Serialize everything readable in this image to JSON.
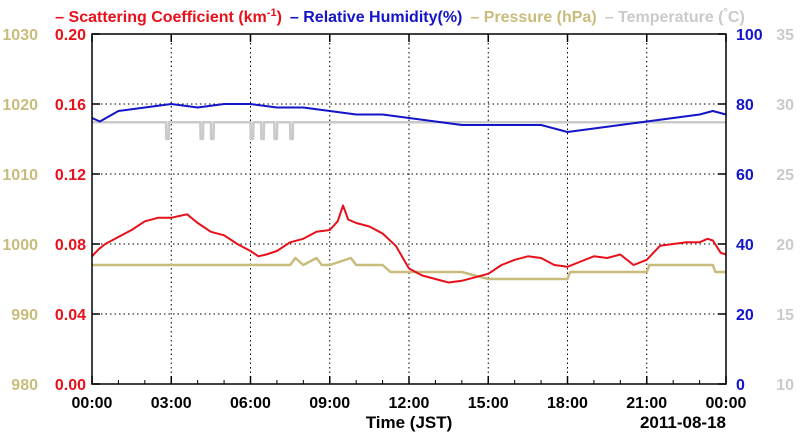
{
  "chart_data": {
    "type": "line",
    "legend": [
      {
        "text": "Scattering Coefficient (km",
        "sup": "-1",
        "tail": ")",
        "color": "#e8101a"
      },
      {
        "text": "Relative Humidity(%)",
        "color": "#1414c8"
      },
      {
        "text": "Pressure (hPa)",
        "color": "#c8bc7c"
      },
      {
        "text": "Temperature (",
        "sup": "°",
        "tail": "C)",
        "color": "#cacaca"
      }
    ],
    "xlabel": "Time (JST)",
    "date_label": "2011-08-18",
    "x_ticks": [
      "00:00",
      "03:00",
      "06:00",
      "09:00",
      "12:00",
      "15:00",
      "18:00",
      "21:00",
      "00:00"
    ],
    "xlim": [
      0,
      24
    ],
    "axes": {
      "pressure": {
        "color": "#c8bc7c",
        "ticks": [
          "980",
          "990",
          "1000",
          "1010",
          "1020",
          "1030"
        ],
        "ylim": [
          980,
          1030
        ]
      },
      "scattering": {
        "color": "#e8101a",
        "ticks": [
          "0.00",
          "0.04",
          "0.08",
          "0.12",
          "0.16",
          "0.20"
        ],
        "ylim": [
          0,
          0.2
        ]
      },
      "humidity": {
        "color": "#1414c8",
        "ticks": [
          "0",
          "20",
          "40",
          "60",
          "80",
          "100"
        ],
        "ylim": [
          0,
          100
        ]
      },
      "temperature": {
        "color": "#cacaca",
        "ticks": [
          "10",
          "15",
          "20",
          "25",
          "30",
          "35"
        ],
        "ylim": [
          10,
          35
        ]
      }
    },
    "grid": true,
    "series": [
      {
        "name": "Scattering Coefficient",
        "axis": "scattering",
        "color": "#e8101a",
        "x": [
          0,
          0.25,
          0.5,
          1,
          1.5,
          2,
          2.5,
          3,
          3.3,
          3.6,
          4,
          4.5,
          5,
          5.5,
          6,
          6.3,
          6.6,
          7,
          7.5,
          8,
          8.5,
          9,
          9.3,
          9.5,
          9.7,
          10,
          10.5,
          11,
          11.5,
          12,
          12.5,
          13,
          13.5,
          14,
          14.5,
          15,
          15.5,
          16,
          16.5,
          17,
          17.5,
          18,
          18.5,
          19,
          19.5,
          20,
          20.5,
          21,
          21.5,
          22,
          22.5,
          23,
          23.3,
          23.5,
          23.8,
          24
        ],
        "y": [
          0.073,
          0.077,
          0.08,
          0.084,
          0.088,
          0.093,
          0.095,
          0.095,
          0.096,
          0.097,
          0.092,
          0.087,
          0.085,
          0.08,
          0.076,
          0.073,
          0.074,
          0.076,
          0.081,
          0.083,
          0.087,
          0.088,
          0.093,
          0.102,
          0.094,
          0.092,
          0.09,
          0.086,
          0.079,
          0.066,
          0.062,
          0.06,
          0.058,
          0.059,
          0.061,
          0.063,
          0.068,
          0.071,
          0.073,
          0.072,
          0.068,
          0.067,
          0.07,
          0.073,
          0.072,
          0.074,
          0.068,
          0.071,
          0.079,
          0.08,
          0.081,
          0.081,
          0.083,
          0.082,
          0.075,
          0.074
        ]
      },
      {
        "name": "Relative Humidity",
        "axis": "humidity",
        "color": "#1414c8",
        "x": [
          0,
          0.3,
          1,
          2,
          3,
          4,
          5,
          6,
          7,
          8,
          9,
          10,
          11,
          12,
          13,
          14,
          15,
          16,
          17,
          18,
          19,
          20,
          21,
          22,
          23,
          23.5,
          24
        ],
        "y": [
          76,
          75,
          78,
          79,
          80,
          79,
          80,
          80,
          79,
          79,
          78,
          77,
          77,
          76,
          75,
          74,
          74,
          74,
          74,
          72,
          73,
          74,
          75,
          76,
          77,
          78,
          77
        ]
      },
      {
        "name": "Pressure",
        "axis": "pressure",
        "color": "#c8bc7c",
        "x": [
          0,
          3,
          5,
          7,
          7.5,
          7.7,
          8,
          8.5,
          8.7,
          9,
          9.8,
          10,
          10.5,
          11,
          11.3,
          12,
          14,
          15,
          18,
          18.1,
          21,
          21.1,
          22,
          22.1,
          23.5,
          23.6,
          24
        ],
        "y": [
          997,
          997,
          997,
          997,
          997,
          998,
          997,
          998,
          997,
          997,
          998,
          997,
          997,
          997,
          996,
          996,
          996,
          995,
          995,
          996,
          996,
          997,
          997,
          997,
          997,
          996,
          996
        ]
      },
      {
        "name": "Temperature",
        "axis": "temperature",
        "color": "#cacaca",
        "x": [
          0,
          2.8,
          2.81,
          2.9,
          2.91,
          3.1,
          4.1,
          4.11,
          4.2,
          4.21,
          4.5,
          4.51,
          4.6,
          4.61,
          6,
          6.01,
          6.1,
          6.11,
          6.4,
          6.41,
          6.5,
          6.51,
          6.9,
          6.91,
          7.0,
          7.01,
          7.5,
          7.51,
          7.6,
          7.61,
          24
        ],
        "y": [
          28.7,
          28.7,
          27.5,
          27.5,
          28.7,
          28.7,
          28.7,
          27.5,
          27.5,
          28.7,
          28.7,
          27.5,
          27.5,
          28.7,
          28.7,
          27.5,
          27.5,
          28.7,
          28.7,
          27.5,
          27.5,
          28.7,
          28.7,
          27.5,
          27.5,
          28.7,
          28.7,
          27.5,
          27.5,
          28.7,
          28.7
        ]
      }
    ]
  }
}
